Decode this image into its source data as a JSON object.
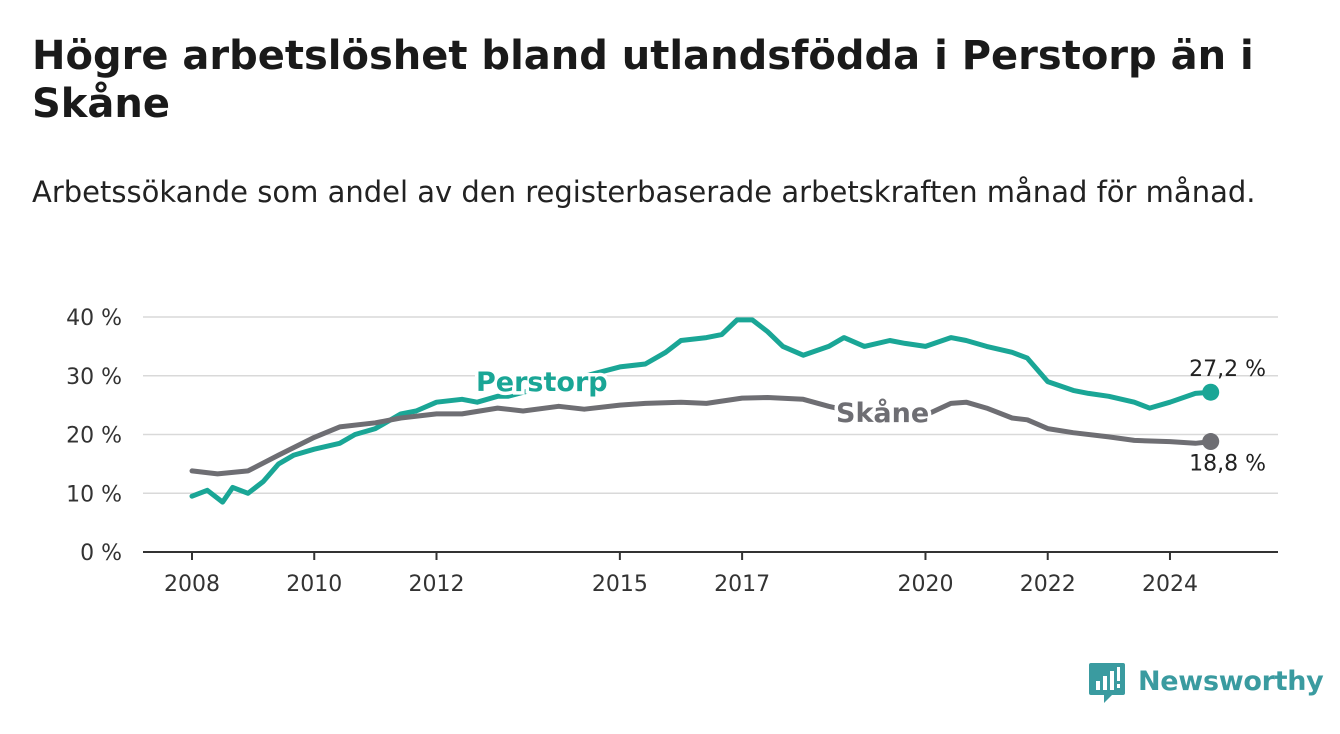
{
  "title": "Högre arbetslöshet bland utlandsfödda i Perstorp än i Skåne",
  "subtitle": "Arbetssökande som andel av den registerbaserade arbetskraften månad för månad.",
  "brand": {
    "name": "Newsworthy",
    "icon": "newsworthy-logo-icon",
    "color": "#3a9ba0"
  },
  "chart_data": {
    "type": "line",
    "x_ticks": [
      "2008",
      "2010",
      "2012",
      "2015",
      "2017",
      "2020",
      "2022",
      "2024"
    ],
    "y_ticks": [
      "0 %",
      "10 %",
      "20 %",
      "30 %",
      "40 %"
    ],
    "ylim": [
      0,
      40
    ],
    "xlim": [
      "2008-01",
      "2024-12"
    ],
    "grid": "horizontal",
    "series": [
      {
        "name": "Perstorp",
        "color": "#1aa696",
        "end_label": "27,2 %",
        "points": [
          [
            "2008-01",
            9.5
          ],
          [
            "2008-04",
            10.5
          ],
          [
            "2008-07",
            8.5
          ],
          [
            "2008-09",
            11
          ],
          [
            "2008-12",
            10
          ],
          [
            "2009-03",
            12
          ],
          [
            "2009-06",
            15
          ],
          [
            "2009-09",
            16.5
          ],
          [
            "2010-01",
            17.5
          ],
          [
            "2010-06",
            18.5
          ],
          [
            "2010-09",
            20
          ],
          [
            "2011-01",
            21
          ],
          [
            "2011-06",
            23.5
          ],
          [
            "2011-09",
            24
          ],
          [
            "2012-01",
            25.5
          ],
          [
            "2012-06",
            26
          ],
          [
            "2012-09",
            25.5
          ],
          [
            "2013-01",
            26.5
          ],
          [
            "2013-03",
            26.5
          ],
          [
            "2015-01",
            31.5
          ],
          [
            "2015-06",
            32
          ],
          [
            "2015-10",
            34
          ],
          [
            "2016-01",
            36
          ],
          [
            "2016-06",
            36.5
          ],
          [
            "2016-09",
            37
          ],
          [
            "2016-12",
            39.5
          ],
          [
            "2017-03",
            39.5
          ],
          [
            "2017-06",
            37.5
          ],
          [
            "2017-09",
            35
          ],
          [
            "2018-01",
            33.5
          ],
          [
            "2018-06",
            35
          ],
          [
            "2018-09",
            36.5
          ],
          [
            "2019-01",
            35
          ],
          [
            "2019-06",
            36
          ],
          [
            "2019-09",
            35.5
          ],
          [
            "2020-01",
            35
          ],
          [
            "2020-06",
            36.5
          ],
          [
            "2020-09",
            36
          ],
          [
            "2021-01",
            35
          ],
          [
            "2021-06",
            34
          ],
          [
            "2021-09",
            33
          ],
          [
            "2022-01",
            29
          ],
          [
            "2022-06",
            27.5
          ],
          [
            "2022-09",
            27
          ],
          [
            "2023-01",
            26.5
          ],
          [
            "2023-06",
            25.5
          ],
          [
            "2023-09",
            24.5
          ],
          [
            "2024-01",
            25.5
          ],
          [
            "2024-06",
            27
          ],
          [
            "2024-09",
            27.2
          ]
        ]
      },
      {
        "name": "Skåne",
        "color": "#6e6e73",
        "end_label": "18,8 %",
        "points": [
          [
            "2008-01",
            13.8
          ],
          [
            "2008-06",
            13.3
          ],
          [
            "2008-12",
            13.8
          ],
          [
            "2009-06",
            16.5
          ],
          [
            "2010-01",
            19.5
          ],
          [
            "2010-06",
            21.3
          ],
          [
            "2011-01",
            22
          ],
          [
            "2011-06",
            22.8
          ],
          [
            "2012-01",
            23.5
          ],
          [
            "2012-06",
            23.5
          ],
          [
            "2013-01",
            24.5
          ],
          [
            "2013-06",
            24
          ],
          [
            "2014-01",
            24.8
          ],
          [
            "2014-06",
            24.3
          ],
          [
            "2015-01",
            25
          ],
          [
            "2015-06",
            25.3
          ],
          [
            "2016-01",
            25.5
          ],
          [
            "2016-06",
            25.3
          ],
          [
            "2017-01",
            26.2
          ],
          [
            "2017-06",
            26.3
          ],
          [
            "2018-01",
            26
          ],
          [
            "2018-06",
            24.8
          ],
          [
            "2018-09",
            24.2
          ],
          [
            "2020-01",
            23.3
          ],
          [
            "2020-06",
            25.3
          ],
          [
            "2020-09",
            25.5
          ],
          [
            "2021-01",
            24.5
          ],
          [
            "2021-06",
            22.8
          ],
          [
            "2021-09",
            22.5
          ],
          [
            "2022-01",
            21
          ],
          [
            "2022-06",
            20.3
          ],
          [
            "2023-01",
            19.6
          ],
          [
            "2023-06",
            19
          ],
          [
            "2024-01",
            18.8
          ],
          [
            "2024-06",
            18.5
          ],
          [
            "2024-09",
            18.8
          ]
        ]
      }
    ]
  }
}
